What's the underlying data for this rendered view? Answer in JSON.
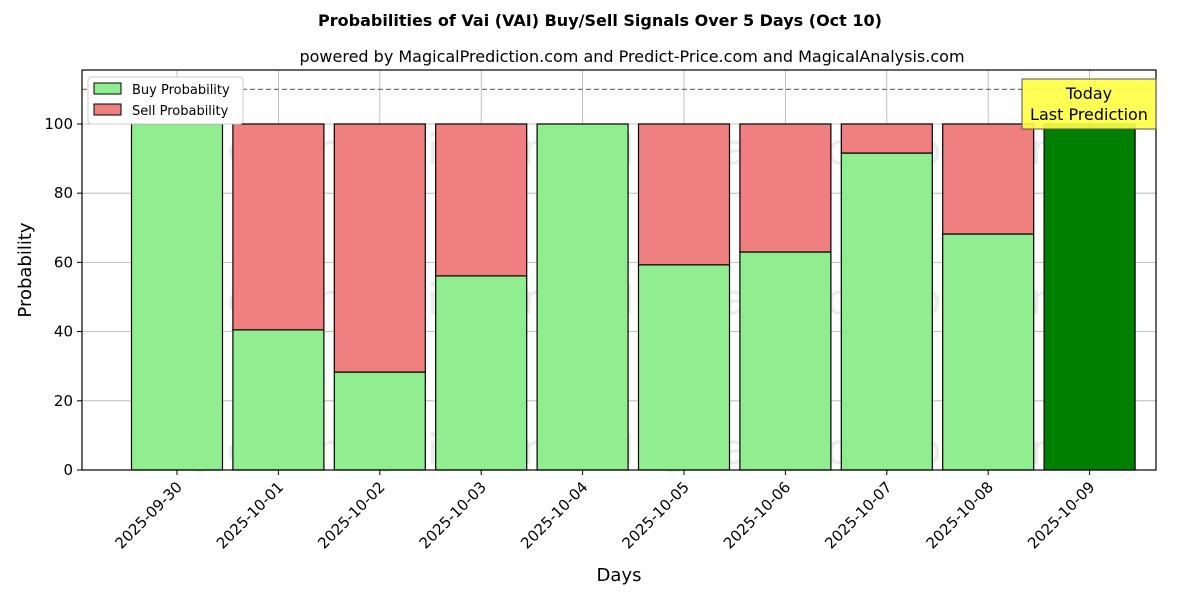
{
  "chart_data": {
    "type": "bar",
    "stacked": true,
    "title": "Probabilities of Vai (VAI) Buy/Sell Signals Over 5 Days (Oct 10)",
    "subtitle": "powered by MagicalPrediction.com and Predict-Price.com and MagicalAnalysis.com",
    "xlabel": "Days",
    "ylabel": "Probability",
    "ylim": [
      0,
      115.6
    ],
    "yticks": [
      0,
      20,
      40,
      60,
      80,
      100
    ],
    "grid": true,
    "legend_position": "top-left",
    "categories": [
      "2025-09-30",
      "2025-10-01",
      "2025-10-02",
      "2025-10-03",
      "2025-10-04",
      "2025-10-05",
      "2025-10-06",
      "2025-10-07",
      "2025-10-08",
      "2025-10-09"
    ],
    "series": [
      {
        "name": "Buy Probability",
        "color": "#90ee90",
        "values": [
          100,
          40.5,
          28.3,
          56.1,
          100,
          59.3,
          63.0,
          91.6,
          68.2,
          100
        ]
      },
      {
        "name": "Sell Probability",
        "color": "#f08080",
        "values": [
          0,
          59.5,
          71.7,
          43.9,
          0,
          40.7,
          37.0,
          8.4,
          31.8,
          0
        ]
      }
    ],
    "highlight": {
      "index": 9,
      "color": "#008000"
    },
    "reference_line": {
      "y": 110,
      "style": "dashed"
    },
    "annotation": {
      "line1": "Today",
      "line2": "Last Prediction"
    },
    "watermarks": [
      "MagicalAnalysis.com",
      "MagicalPrediction.com"
    ]
  }
}
